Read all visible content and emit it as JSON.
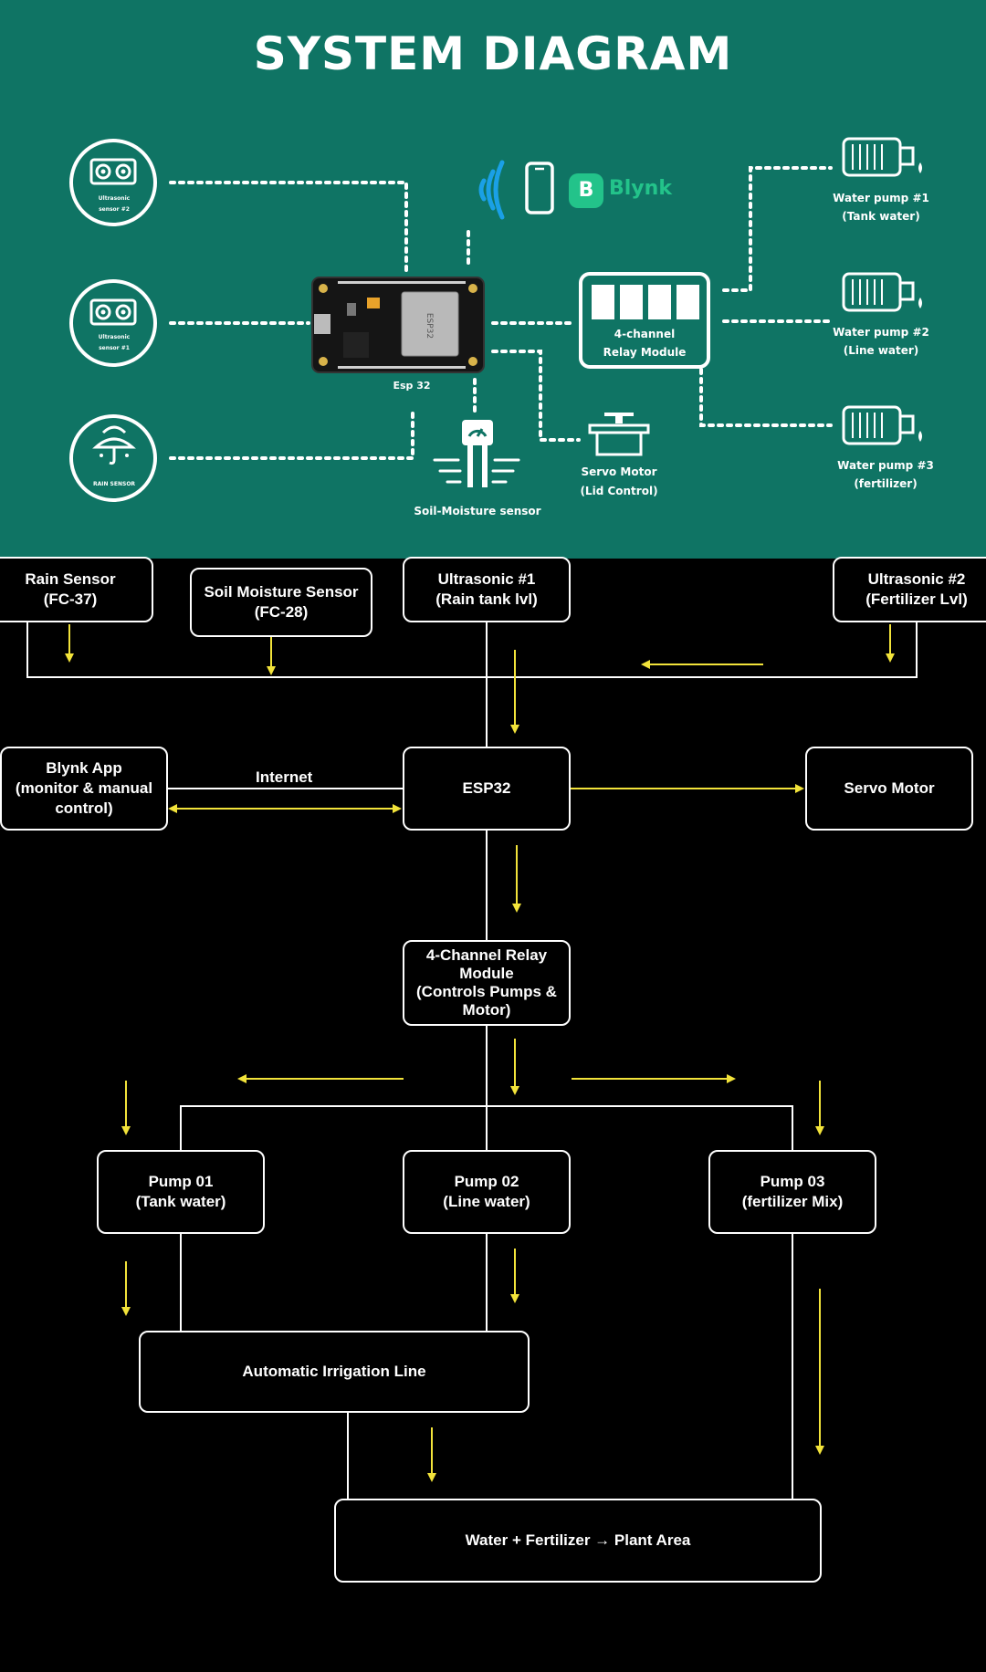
{
  "top": {
    "title": "SYSTEM DIAGRAM",
    "sensors": {
      "us2": {
        "line1": "Ultrasonic",
        "line2": "sensor #2"
      },
      "us1": {
        "line1": "Ultrasonic",
        "line2": "sensor #1"
      },
      "rain": {
        "line1": "RAIN SENSOR"
      }
    },
    "esp_label": "Esp 32",
    "esp_chip_text": "ESP32",
    "blynk_logo_letter": "B",
    "blynk_label": "Blynk",
    "relay": {
      "line1": "4-channel",
      "line2": "Relay Module"
    },
    "servo": {
      "line1": "Servo Motor",
      "line2": "(Lid Control)"
    },
    "soil_label": "Soil-Moisture sensor",
    "pumps": [
      {
        "line1": "Water pump #1",
        "line2": "(Tank water)"
      },
      {
        "line1": "Water pump #2",
        "line2": "(Line water)"
      },
      {
        "line1": "Water pump #3",
        "line2": "(fertilizer)"
      }
    ],
    "colors": {
      "background": "#0f7464",
      "wifi": "#1aa0e6",
      "blynk": "#23c38a"
    }
  },
  "flow": {
    "rain_sensor": {
      "line1": "Rain Sensor",
      "line2": "(FC-37)"
    },
    "soil_sensor": {
      "line1": "Soil Moisture Sensor",
      "line2": "(FC-28)"
    },
    "ultrasonic1": {
      "line1": "Ultrasonic #1",
      "line2": "(Rain tank lvl)"
    },
    "ultrasonic2": {
      "line1": "Ultrasonic #2",
      "line2": "(Fertilizer Lvl)"
    },
    "blynk_app": {
      "line1": "Blynk App",
      "line2": "(monitor & manual",
      "line3": "control)"
    },
    "internet_label": "Internet",
    "esp32": {
      "line1": "ESP32"
    },
    "servo": {
      "line1": "Servo Motor"
    },
    "relay": {
      "line1": "4-Channel Relay",
      "line2": "Module",
      "line3": "(Controls Pumps &",
      "line4": "Motor)"
    },
    "pump1": {
      "line1": "Pump 01",
      "line2": "(Tank water)"
    },
    "pump2": {
      "line1": "Pump 02",
      "line2": "(Line water)"
    },
    "pump3": {
      "line1": "Pump 03",
      "line2": "(fertilizer Mix)"
    },
    "irrigation": {
      "line1": "Automatic Irrigation Line"
    },
    "plant": {
      "line1": "Water + Fertilizer → Plant Area"
    },
    "colors": {
      "arrow": "#f2e33a",
      "line": "#ffffff",
      "background": "#000000"
    }
  }
}
